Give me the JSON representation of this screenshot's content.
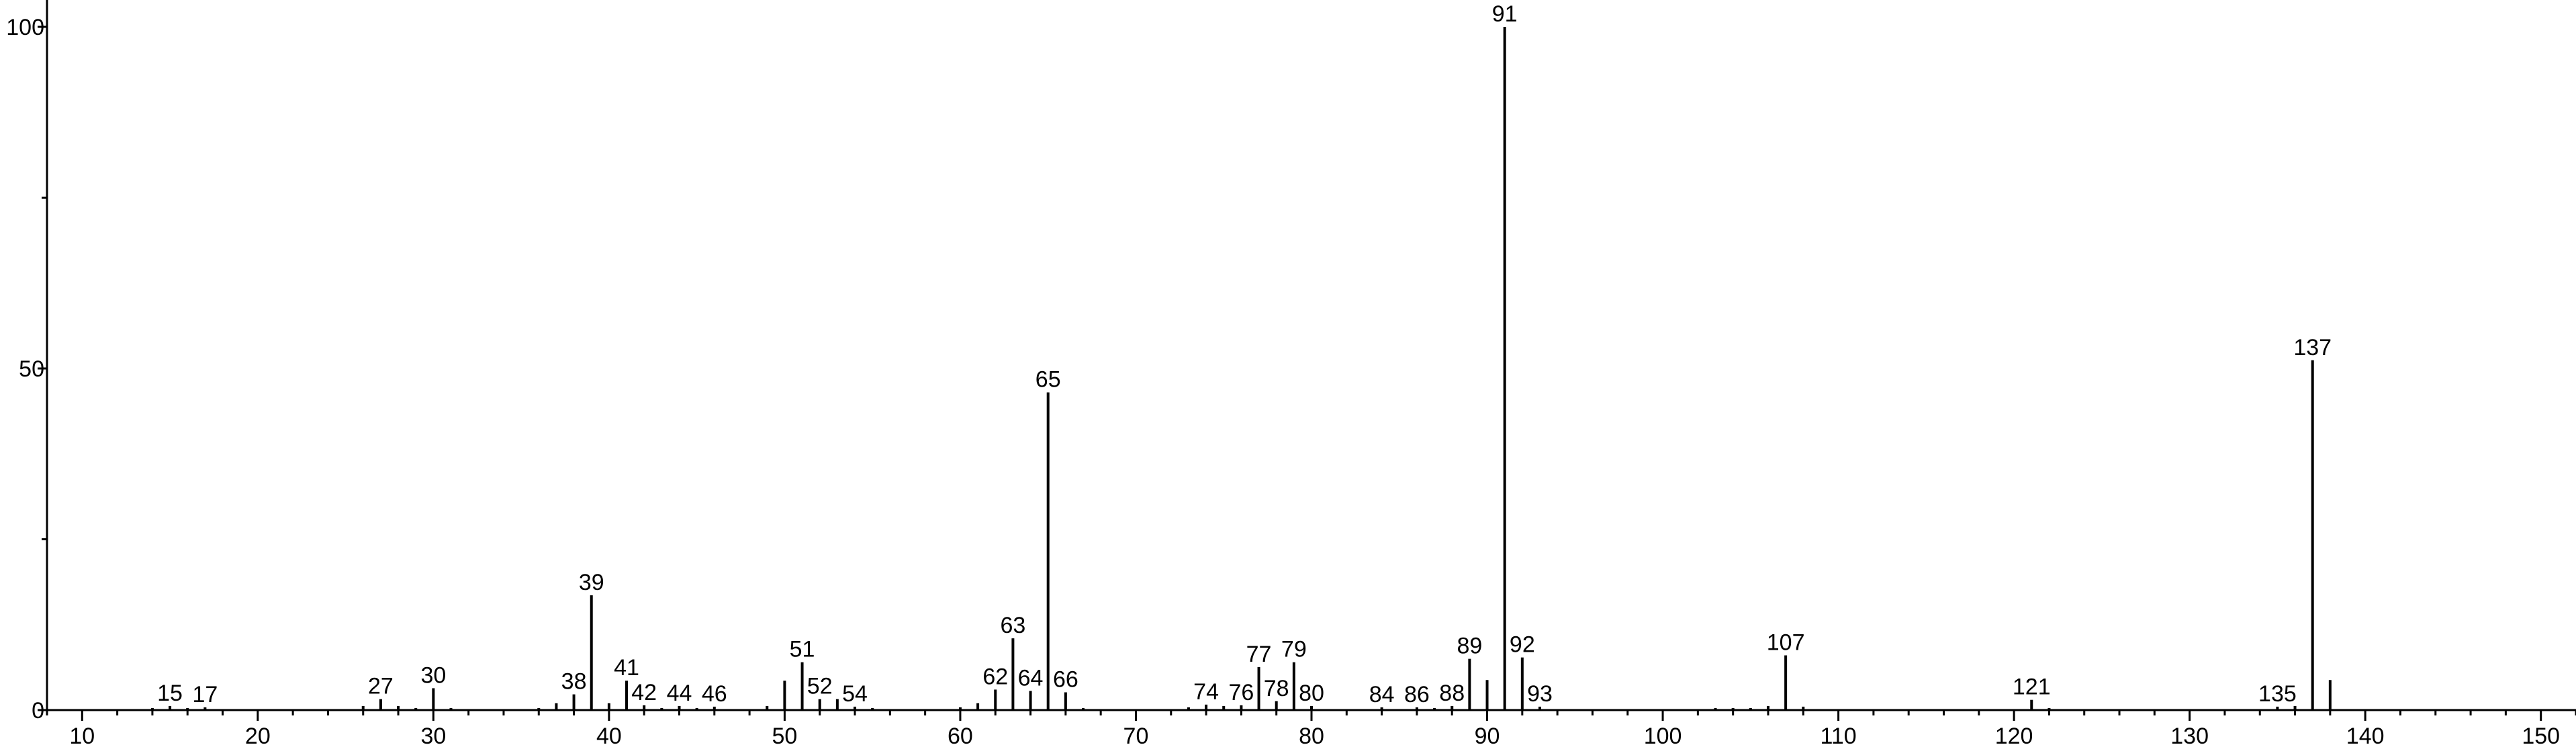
{
  "chart_data": {
    "type": "bar",
    "xlim": [
      8,
      152
    ],
    "ylim": [
      0,
      100
    ],
    "x_ticks": [
      "10",
      "20",
      "30",
      "40",
      "50",
      "60",
      "70",
      "80",
      "90",
      "100",
      "110",
      "120",
      "130",
      "140",
      "150"
    ],
    "y_ticks": [
      "0",
      "50",
      "100"
    ],
    "grid": false,
    "legend": "none",
    "peaks": [
      {
        "mz": 14,
        "intensity": 0.3,
        "label": ""
      },
      {
        "mz": 15,
        "intensity": 0.6,
        "label": "15"
      },
      {
        "mz": 16,
        "intensity": 0.3,
        "label": ""
      },
      {
        "mz": 17,
        "intensity": 0.4,
        "label": "17"
      },
      {
        "mz": 26,
        "intensity": 0.6,
        "label": ""
      },
      {
        "mz": 27,
        "intensity": 1.6,
        "label": "27"
      },
      {
        "mz": 28,
        "intensity": 0.6,
        "label": ""
      },
      {
        "mz": 29,
        "intensity": 0.3,
        "label": ""
      },
      {
        "mz": 30,
        "intensity": 3.2,
        "label": "30"
      },
      {
        "mz": 31,
        "intensity": 0.3,
        "label": ""
      },
      {
        "mz": 36,
        "intensity": 0.3,
        "label": ""
      },
      {
        "mz": 37,
        "intensity": 1.0,
        "label": ""
      },
      {
        "mz": 38,
        "intensity": 2.3,
        "label": "38"
      },
      {
        "mz": 39,
        "intensity": 16.8,
        "label": "39"
      },
      {
        "mz": 40,
        "intensity": 1.0,
        "label": ""
      },
      {
        "mz": 41,
        "intensity": 4.3,
        "label": "41"
      },
      {
        "mz": 42,
        "intensity": 0.7,
        "label": "42"
      },
      {
        "mz": 43,
        "intensity": 0.3,
        "label": ""
      },
      {
        "mz": 44,
        "intensity": 0.6,
        "label": "44"
      },
      {
        "mz": 45,
        "intensity": 0.3,
        "label": ""
      },
      {
        "mz": 46,
        "intensity": 0.5,
        "label": "46"
      },
      {
        "mz": 49,
        "intensity": 0.6,
        "label": ""
      },
      {
        "mz": 50,
        "intensity": 4.3,
        "label": ""
      },
      {
        "mz": 51,
        "intensity": 7.0,
        "label": "51"
      },
      {
        "mz": 52,
        "intensity": 1.6,
        "label": "52"
      },
      {
        "mz": 53,
        "intensity": 1.6,
        "label": ""
      },
      {
        "mz": 54,
        "intensity": 0.5,
        "label": "54"
      },
      {
        "mz": 55,
        "intensity": 0.3,
        "label": ""
      },
      {
        "mz": 60,
        "intensity": 0.4,
        "label": ""
      },
      {
        "mz": 61,
        "intensity": 1.0,
        "label": ""
      },
      {
        "mz": 62,
        "intensity": 3.0,
        "label": "62"
      },
      {
        "mz": 63,
        "intensity": 10.5,
        "label": "63"
      },
      {
        "mz": 64,
        "intensity": 2.8,
        "label": "64"
      },
      {
        "mz": 65,
        "intensity": 46.5,
        "label": "65"
      },
      {
        "mz": 66,
        "intensity": 2.6,
        "label": "66"
      },
      {
        "mz": 67,
        "intensity": 0.3,
        "label": ""
      },
      {
        "mz": 73,
        "intensity": 0.4,
        "label": ""
      },
      {
        "mz": 74,
        "intensity": 0.8,
        "label": "74"
      },
      {
        "mz": 75,
        "intensity": 0.6,
        "label": ""
      },
      {
        "mz": 76,
        "intensity": 0.7,
        "label": "76"
      },
      {
        "mz": 77,
        "intensity": 6.3,
        "label": "77"
      },
      {
        "mz": 78,
        "intensity": 1.3,
        "label": "78"
      },
      {
        "mz": 79,
        "intensity": 7.0,
        "label": "79"
      },
      {
        "mz": 80,
        "intensity": 0.6,
        "label": "80"
      },
      {
        "mz": 84,
        "intensity": 0.4,
        "label": "84"
      },
      {
        "mz": 86,
        "intensity": 0.4,
        "label": "86"
      },
      {
        "mz": 87,
        "intensity": 0.3,
        "label": ""
      },
      {
        "mz": 88,
        "intensity": 0.6,
        "label": "88"
      },
      {
        "mz": 89,
        "intensity": 7.5,
        "label": "89"
      },
      {
        "mz": 90,
        "intensity": 4.4,
        "label": ""
      },
      {
        "mz": 91,
        "intensity": 100.0,
        "label": "91"
      },
      {
        "mz": 92,
        "intensity": 7.7,
        "label": "92"
      },
      {
        "mz": 93,
        "intensity": 0.5,
        "label": "93"
      },
      {
        "mz": 103,
        "intensity": 0.3,
        "label": ""
      },
      {
        "mz": 104,
        "intensity": 0.3,
        "label": ""
      },
      {
        "mz": 105,
        "intensity": 0.3,
        "label": ""
      },
      {
        "mz": 106,
        "intensity": 0.6,
        "label": ""
      },
      {
        "mz": 107,
        "intensity": 8.0,
        "label": "107"
      },
      {
        "mz": 108,
        "intensity": 0.5,
        "label": ""
      },
      {
        "mz": 121,
        "intensity": 1.5,
        "label": "121"
      },
      {
        "mz": 122,
        "intensity": 0.3,
        "label": ""
      },
      {
        "mz": 135,
        "intensity": 0.5,
        "label": "135"
      },
      {
        "mz": 136,
        "intensity": 0.6,
        "label": ""
      },
      {
        "mz": 137,
        "intensity": 51.2,
        "label": "137"
      },
      {
        "mz": 138,
        "intensity": 4.4,
        "label": ""
      }
    ]
  }
}
